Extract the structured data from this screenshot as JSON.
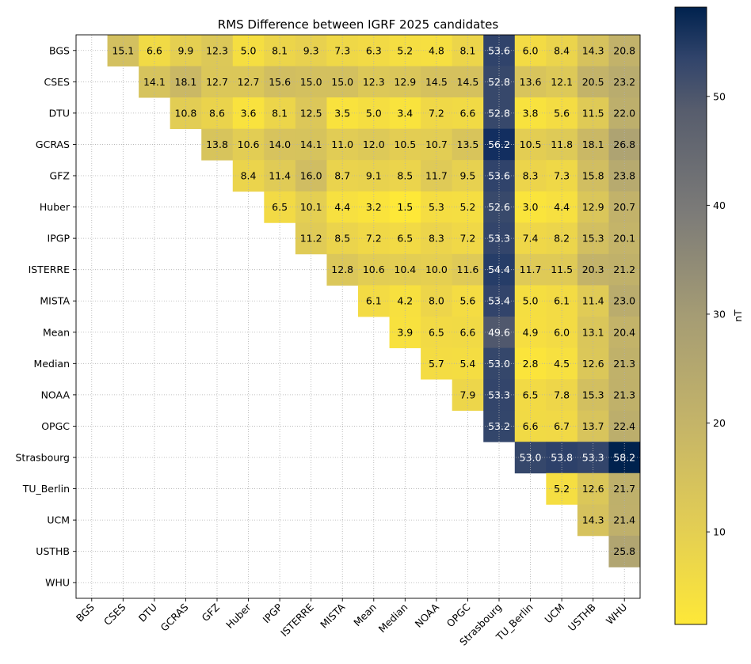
{
  "chart_data": {
    "type": "heatmap",
    "title": "RMS Difference between IGRF 2025 candidates",
    "labels": [
      "BGS",
      "CSES",
      "DTU",
      "GCRAS",
      "GFZ",
      "Huber",
      "IPGP",
      "ISTERRE",
      "MISTA",
      "Mean",
      "Median",
      "NOAA",
      "OPGC",
      "Strasbourg",
      "TU_Berlin",
      "UCM",
      "USTHB",
      "WHU"
    ],
    "matrix": [
      [
        null,
        15.1,
        6.6,
        9.9,
        12.3,
        5.0,
        8.1,
        9.3,
        7.3,
        6.3,
        5.2,
        4.8,
        8.1,
        53.6,
        6.0,
        8.4,
        14.3,
        20.8
      ],
      [
        null,
        null,
        14.1,
        18.1,
        12.7,
        12.7,
        15.6,
        15.0,
        15.0,
        12.3,
        12.9,
        14.5,
        14.5,
        52.8,
        13.6,
        12.1,
        20.5,
        23.2
      ],
      [
        null,
        null,
        null,
        10.8,
        8.6,
        3.6,
        8.1,
        12.5,
        3.5,
        5.0,
        3.4,
        7.2,
        6.6,
        52.8,
        3.8,
        5.6,
        11.5,
        22.0
      ],
      [
        null,
        null,
        null,
        null,
        13.8,
        10.6,
        14.0,
        14.1,
        11.0,
        12.0,
        10.5,
        10.7,
        13.5,
        56.2,
        10.5,
        11.8,
        18.1,
        26.8
      ],
      [
        null,
        null,
        null,
        null,
        null,
        8.4,
        11.4,
        16.0,
        8.7,
        9.1,
        8.5,
        11.7,
        9.5,
        53.6,
        8.3,
        7.3,
        15.8,
        23.8
      ],
      [
        null,
        null,
        null,
        null,
        null,
        null,
        6.5,
        10.1,
        4.4,
        3.2,
        1.5,
        5.3,
        5.2,
        52.6,
        3.0,
        4.4,
        12.9,
        20.7
      ],
      [
        null,
        null,
        null,
        null,
        null,
        null,
        null,
        11.2,
        8.5,
        7.2,
        6.5,
        8.3,
        7.2,
        53.3,
        7.4,
        8.2,
        15.3,
        20.1
      ],
      [
        null,
        null,
        null,
        null,
        null,
        null,
        null,
        null,
        12.8,
        10.6,
        10.4,
        10.0,
        11.6,
        54.4,
        11.7,
        11.5,
        20.3,
        21.2
      ],
      [
        null,
        null,
        null,
        null,
        null,
        null,
        null,
        null,
        null,
        6.1,
        4.2,
        8.0,
        5.6,
        53.4,
        5.0,
        6.1,
        11.4,
        23.0
      ],
      [
        null,
        null,
        null,
        null,
        null,
        null,
        null,
        null,
        null,
        null,
        3.9,
        6.5,
        6.6,
        49.6,
        4.9,
        6.0,
        13.1,
        20.4
      ],
      [
        null,
        null,
        null,
        null,
        null,
        null,
        null,
        null,
        null,
        null,
        null,
        5.7,
        5.4,
        53.0,
        2.8,
        4.5,
        12.6,
        21.3
      ],
      [
        null,
        null,
        null,
        null,
        null,
        null,
        null,
        null,
        null,
        null,
        null,
        null,
        7.9,
        53.3,
        6.5,
        7.8,
        15.3,
        21.3
      ],
      [
        null,
        null,
        null,
        null,
        null,
        null,
        null,
        null,
        null,
        null,
        null,
        null,
        null,
        53.2,
        6.6,
        6.7,
        13.7,
        22.4
      ],
      [
        null,
        null,
        null,
        null,
        null,
        null,
        null,
        null,
        null,
        null,
        null,
        null,
        null,
        null,
        53.0,
        53.8,
        53.3,
        58.2
      ],
      [
        null,
        null,
        null,
        null,
        null,
        null,
        null,
        null,
        null,
        null,
        null,
        null,
        null,
        null,
        null,
        5.2,
        12.6,
        21.7
      ],
      [
        null,
        null,
        null,
        null,
        null,
        null,
        null,
        null,
        null,
        null,
        null,
        null,
        null,
        null,
        null,
        null,
        14.3,
        21.4
      ],
      [
        null,
        null,
        null,
        null,
        null,
        null,
        null,
        null,
        null,
        null,
        null,
        null,
        null,
        null,
        null,
        null,
        null,
        25.8
      ],
      [
        null,
        null,
        null,
        null,
        null,
        null,
        null,
        null,
        null,
        null,
        null,
        null,
        null,
        null,
        null,
        null,
        null,
        null
      ]
    ],
    "colorbar": {
      "label": "nT",
      "min": 1.5,
      "max": 58.2,
      "ticks": [
        10,
        20,
        30,
        40,
        50
      ],
      "colormap": "cividis_r"
    },
    "grid": true,
    "text_color_threshold": 45
  }
}
